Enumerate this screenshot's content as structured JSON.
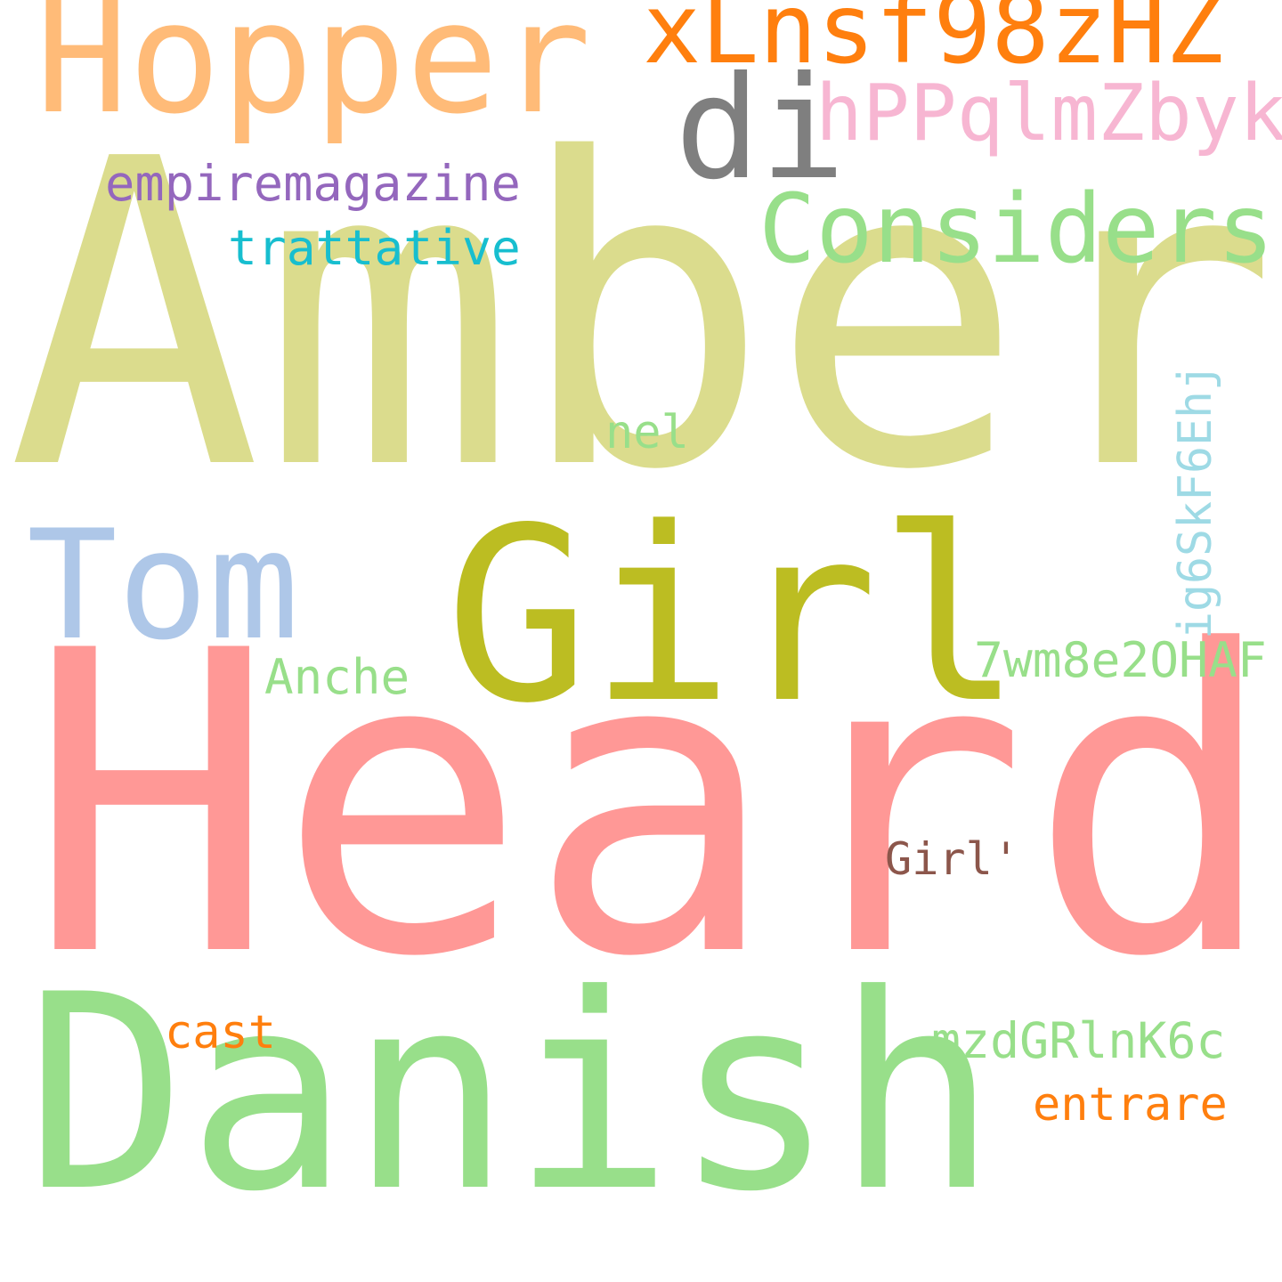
{
  "words": [
    {
      "id": "amber",
      "text": "Amber",
      "color": "#dbdc8d"
    },
    {
      "id": "heard",
      "text": "Heard",
      "color": "#ff9896"
    },
    {
      "id": "danish",
      "text": "Danish",
      "color": "#98df8a"
    },
    {
      "id": "girl",
      "text": "Girl",
      "color": "#bcbd22"
    },
    {
      "id": "hopper",
      "text": "Hopper",
      "color": "#ffbb78"
    },
    {
      "id": "tom",
      "text": "Tom",
      "color": "#aec7e8"
    },
    {
      "id": "xlnsf98zhz",
      "text": "xLnsf98zHZ",
      "color": "#ff7f0e"
    },
    {
      "id": "di",
      "text": "di",
      "color": "#7f7f7f"
    },
    {
      "id": "considers",
      "text": "Considers",
      "color": "#98df8a"
    },
    {
      "id": "hppqlmzbyk",
      "text": "hPPqlmZbyk",
      "color": "#f7b6d2"
    },
    {
      "id": "empiremagazine",
      "text": "empiremagazine",
      "color": "#9467bd"
    },
    {
      "id": "trattative",
      "text": "trattative",
      "color": "#17becf"
    },
    {
      "id": "ig6skf6ehj",
      "text": "ig6SkF6Ehj",
      "color": "#9edae5"
    },
    {
      "id": "nel",
      "text": "nel",
      "color": "#98df8a"
    },
    {
      "id": "7wm8e2ohaf",
      "text": "7wm8e2OHAF",
      "color": "#98df8a"
    },
    {
      "id": "anche",
      "text": "Anche",
      "color": "#98df8a"
    },
    {
      "id": "girl-apos",
      "text": "Girl'",
      "color": "#8c564b"
    },
    {
      "id": "cast",
      "text": "cast",
      "color": "#ff7f0e"
    },
    {
      "id": "mzdgrlnk6c",
      "text": "mzdGRlnK6c",
      "color": "#98df8a"
    },
    {
      "id": "entrare",
      "text": "entrare",
      "color": "#ff7f0e"
    }
  ]
}
